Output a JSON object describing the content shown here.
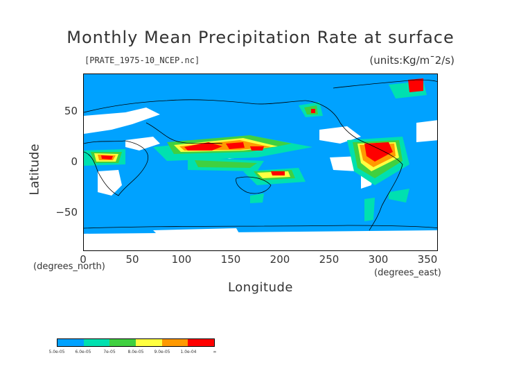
{
  "title": "Monthly Mean Precipitation Rate at surface",
  "file_label": "[PRATE_1975-10_NCEP.nc]",
  "units_label": "(units:Kg/m¯2/s)",
  "axes": {
    "ylabel": "Latitude",
    "xlabel": "Longitude",
    "lat_unit": "(degrees_north)",
    "lon_unit": "(degrees_east)",
    "lat_ticks": [
      "50",
      "0",
      "−50"
    ],
    "lon_ticks": [
      "0",
      "50",
      "100",
      "150",
      "200",
      "250",
      "300",
      "350"
    ]
  },
  "colors": {
    "ocean": "#00a2ff",
    "missing": "#ffffff",
    "low": "#00e0c0",
    "mid": "#40d040",
    "high": "#ffff40",
    "higher": "#ff9900",
    "max": "#ff0000"
  },
  "colorbar": {
    "swatches": [
      "#00a2ff",
      "#00e0b0",
      "#40d040",
      "#ffff40",
      "#ff9900",
      "#ff0000"
    ],
    "labels": [
      "5.0e-05",
      "6.0e-05",
      "7e-05",
      "8.0e-05",
      "9.0e-05",
      "1.0e-04",
      "∞"
    ]
  }
}
